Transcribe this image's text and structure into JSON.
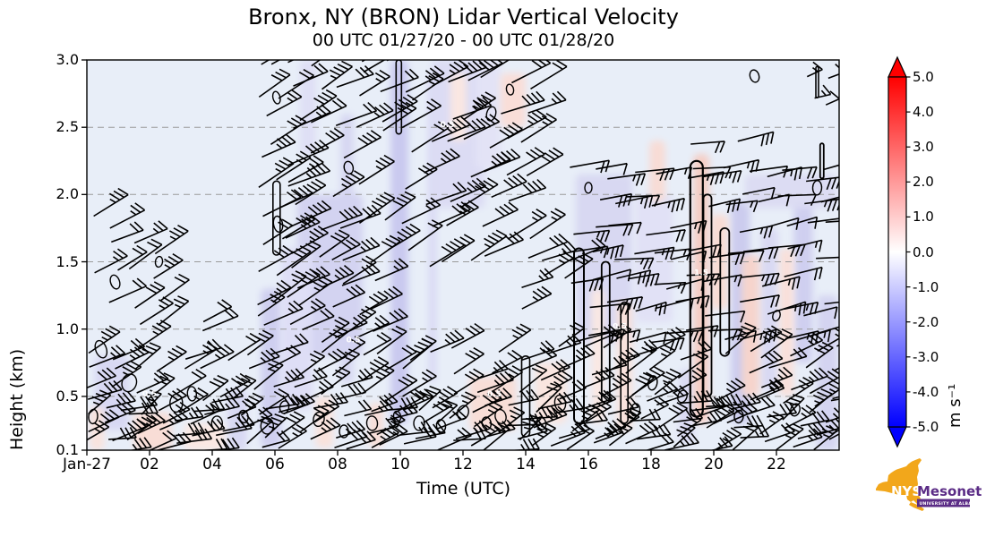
{
  "title": "Bronx, NY (BRON) Lidar Vertical Velocity",
  "subtitle": "00 UTC 01/27/20 - 00 UTC 01/28/20",
  "chart_data": {
    "type": "heatmap",
    "subtype": "time-height wind barbs with vertical-velocity shading and contours",
    "title": "Bronx, NY (BRON) Lidar Vertical Velocity",
    "subtitle": "00 UTC 01/27/20 - 00 UTC 01/28/20",
    "xlabel": "Time (UTC)",
    "ylabel": "Height (km)",
    "x_range_hours": [
      0,
      24
    ],
    "y_range_km": [
      0.1,
      3.0
    ],
    "grid": "horizontal dashed at 0.5 km intervals",
    "grid_lines_km": [
      0.5,
      1.0,
      1.5,
      2.0,
      2.5
    ],
    "plot_bg": "#e8eef8",
    "grid_color": "#9a9a9a",
    "barb_color": "#000000",
    "x_ticks": [
      {
        "h": 0,
        "label": "Jan-27"
      },
      {
        "h": 2,
        "label": "02"
      },
      {
        "h": 4,
        "label": "04"
      },
      {
        "h": 6,
        "label": "06"
      },
      {
        "h": 8,
        "label": "08"
      },
      {
        "h": 10,
        "label": "10"
      },
      {
        "h": 12,
        "label": "12"
      },
      {
        "h": 14,
        "label": "14"
      },
      {
        "h": 16,
        "label": "16"
      },
      {
        "h": 18,
        "label": "18"
      },
      {
        "h": 20,
        "label": "20"
      },
      {
        "h": 22,
        "label": "22"
      }
    ],
    "y_ticks": [
      {
        "v": 3.0,
        "label": "3.0"
      },
      {
        "v": 2.5,
        "label": "2.5"
      },
      {
        "v": 2.0,
        "label": "2.0"
      },
      {
        "v": 1.5,
        "label": "1.5"
      },
      {
        "v": 1.0,
        "label": "1.0"
      },
      {
        "v": 0.5,
        "label": "0.5"
      },
      {
        "v": 0.1,
        "label": "0.1"
      }
    ],
    "colorbar": {
      "label": "m s⁻¹",
      "min": -5.0,
      "max": 5.0,
      "extend": "both",
      "cmap": "blue-white-red",
      "cmap_stops": [
        "#0000ff",
        "#ffffff",
        "#ff0000"
      ],
      "ticks": [
        {
          "v": 5.0,
          "label": "5.0"
        },
        {
          "v": 4.0,
          "label": "4.0"
        },
        {
          "v": 3.0,
          "label": "3.0"
        },
        {
          "v": 2.0,
          "label": "2.0"
        },
        {
          "v": 1.0,
          "label": "1.0"
        },
        {
          "v": 0.0,
          "label": "0.0"
        },
        {
          "v": -1.0,
          "label": "-1.0"
        },
        {
          "v": -2.0,
          "label": "-2.0"
        },
        {
          "v": -3.0,
          "label": "-3.0"
        },
        {
          "v": -4.0,
          "label": "-4.0"
        },
        {
          "v": -5.0,
          "label": "-5.0"
        }
      ]
    },
    "shading_patches": [
      [
        9.7,
        10.25,
        0.3,
        3.0,
        "#c9c9ef"
      ],
      [
        10.9,
        11.15,
        0.6,
        2.9,
        "#d9d9f4"
      ],
      [
        8.1,
        8.5,
        0.6,
        2.6,
        "#d6d6f2"
      ],
      [
        6.7,
        8.8,
        0.8,
        2.0,
        "#d3d3f1"
      ],
      [
        5.55,
        6.2,
        0.12,
        1.3,
        "#cfcff0"
      ],
      [
        6.2,
        7.2,
        0.4,
        1.6,
        "#dedef6"
      ],
      [
        11.0,
        12.7,
        1.9,
        3.0,
        "#dcdcf4"
      ],
      [
        6.8,
        7.3,
        2.3,
        3.0,
        "#dfdff5"
      ],
      [
        0.25,
        1.35,
        0.25,
        0.8,
        "#d8d8f3"
      ],
      [
        4.5,
        5.1,
        0.1,
        0.55,
        "#d8d8f3"
      ],
      [
        15.6,
        17.4,
        0.9,
        2.15,
        "#d8d8f2"
      ],
      [
        17.5,
        18.7,
        1.05,
        2.0,
        "#e1e1f6"
      ],
      [
        20.55,
        21.15,
        0.3,
        1.95,
        "#ccccee"
      ],
      [
        21.5,
        22.05,
        0.55,
        1.75,
        "#d9d9f3"
      ],
      [
        22.55,
        23.15,
        0.75,
        2.1,
        "#cfcff0"
      ],
      [
        23.3,
        23.95,
        0.1,
        1.25,
        "#d4d4f1"
      ],
      [
        21.0,
        23.9,
        1.9,
        2.15,
        "#dcdcf3"
      ],
      [
        12.4,
        13.2,
        2.2,
        3.0,
        "#e3e3f6"
      ],
      [
        18.9,
        19.35,
        0.15,
        0.7,
        "#dadaf3"
      ],
      [
        19.35,
        19.85,
        0.3,
        2.3,
        "#f5cdc4"
      ],
      [
        19.9,
        20.45,
        1.15,
        1.85,
        "#f8dcd4"
      ],
      [
        1.5,
        2.7,
        0.1,
        0.38,
        "#f8ddd6"
      ],
      [
        3.1,
        4.4,
        0.1,
        0.3,
        "#fae8e3"
      ],
      [
        12.2,
        13.7,
        0.25,
        0.65,
        "#f8ded7"
      ],
      [
        14.3,
        15.3,
        0.3,
        0.75,
        "#fae5df"
      ],
      [
        20.9,
        21.45,
        0.5,
        1.55,
        "#f6d4cc"
      ],
      [
        22.1,
        22.55,
        0.5,
        1.6,
        "#f9e0da"
      ],
      [
        16.1,
        16.5,
        0.3,
        1.3,
        "#fae8e3"
      ],
      [
        7.3,
        7.85,
        0.12,
        0.5,
        "#f9e2dc"
      ],
      [
        17.95,
        18.45,
        1.95,
        2.4,
        "#f8dcd5"
      ],
      [
        13.2,
        14.0,
        2.5,
        2.9,
        "#f9ded8"
      ],
      [
        9.0,
        9.45,
        0.12,
        0.45,
        "#f8ded7"
      ],
      [
        0.1,
        0.55,
        0.1,
        0.42,
        "#f9e3dd"
      ],
      [
        16.9,
        17.4,
        0.25,
        1.2,
        "#f9e2dc"
      ],
      [
        11.6,
        12.1,
        2.4,
        2.9,
        "#fae7e2"
      ]
    ],
    "contour_tubes": [
      [
        19.45,
        0.35,
        2.25,
        14,
        2.2
      ],
      [
        19.8,
        0.5,
        2.0,
        9,
        1.8
      ],
      [
        15.7,
        0.3,
        1.6,
        11,
        2.0
      ],
      [
        16.55,
        0.45,
        1.5,
        9,
        1.8
      ],
      [
        17.15,
        0.3,
        1.2,
        8,
        1.6
      ],
      [
        20.35,
        0.8,
        1.75,
        10,
        1.8
      ],
      [
        14.0,
        0.2,
        0.8,
        9,
        1.6
      ],
      [
        6.05,
        1.55,
        2.1,
        8,
        1.6
      ],
      [
        9.95,
        2.45,
        3.0,
        6,
        1.6
      ],
      [
        23.45,
        2.12,
        2.38,
        4,
        1.8
      ],
      [
        23.3,
        2.72,
        2.95,
        3,
        1.6
      ]
    ],
    "contour_loops": [
      [
        0.45,
        0.85,
        6,
        10
      ],
      [
        0.9,
        1.35,
        5,
        8
      ],
      [
        1.35,
        0.6,
        8,
        10
      ],
      [
        2.3,
        1.5,
        4,
        6
      ],
      [
        2.85,
        0.45,
        7,
        10
      ],
      [
        3.35,
        0.52,
        5,
        8
      ],
      [
        4.15,
        0.3,
        6,
        8
      ],
      [
        5.0,
        0.35,
        5,
        7
      ],
      [
        5.75,
        0.28,
        7,
        9
      ],
      [
        6.3,
        0.42,
        5,
        7
      ],
      [
        6.1,
        1.78,
        5,
        9
      ],
      [
        6.05,
        2.72,
        4,
        7
      ],
      [
        7.4,
        0.33,
        6,
        8
      ],
      [
        8.2,
        0.24,
        5,
        7
      ],
      [
        8.35,
        2.2,
        5,
        7
      ],
      [
        9.1,
        0.3,
        6,
        8
      ],
      [
        9.9,
        0.35,
        4,
        6
      ],
      [
        10.6,
        0.3,
        6,
        8
      ],
      [
        11.3,
        0.28,
        5,
        7
      ],
      [
        12.0,
        0.38,
        6,
        8
      ],
      [
        12.75,
        0.3,
        5,
        7
      ],
      [
        12.9,
        2.6,
        5,
        8
      ],
      [
        13.5,
        2.78,
        4,
        6
      ],
      [
        13.2,
        0.35,
        6,
        8
      ],
      [
        14.5,
        0.3,
        5,
        7
      ],
      [
        15.1,
        0.45,
        6,
        9
      ],
      [
        16.0,
        2.05,
        4,
        6
      ],
      [
        18.05,
        0.6,
        5,
        8
      ],
      [
        21.3,
        2.88,
        5,
        7
      ],
      [
        22.0,
        1.1,
        4,
        6
      ],
      [
        23.3,
        2.05,
        5,
        8
      ],
      [
        0.2,
        0.35,
        5,
        8
      ],
      [
        17.5,
        0.4,
        5,
        7
      ],
      [
        19.0,
        0.5,
        5,
        7
      ],
      [
        20.8,
        0.35,
        5,
        7
      ],
      [
        22.6,
        0.4,
        5,
        7
      ]
    ],
    "contour_labels": [
      [
        2.0,
        0.5,
        "0.5"
      ],
      [
        8.5,
        0.9,
        "0.5"
      ],
      [
        13.0,
        0.5,
        "0.5"
      ],
      [
        17.0,
        1.0,
        "0.5"
      ],
      [
        19.6,
        1.4,
        "1.5"
      ],
      [
        11.5,
        2.5,
        "0.5"
      ]
    ],
    "barb_regions": [
      {
        "t0": 0.1,
        "t1": 23.9,
        "z0": 0.13,
        "z1": 0.5,
        "dt": 0.55,
        "dz": 0.1,
        "ang": -24,
        "jit": 22,
        "side": 1,
        "keep": 0.93,
        "len": 36,
        "f0": 2,
        "f1": 3
      },
      {
        "t0": 0.1,
        "t1": 23.9,
        "z0": 0.52,
        "z1": 0.95,
        "dt": 0.72,
        "dz": 0.15,
        "ang": -28,
        "jit": 13,
        "side": 1,
        "keep": 0.86,
        "len": 40,
        "f0": 2,
        "f1": 3
      },
      {
        "t0": 0.1,
        "t1": 2.6,
        "z0": 1.0,
        "z1": 1.95,
        "dt": 0.7,
        "dz": 0.2,
        "ang": -30,
        "jit": 10,
        "side": 1,
        "keep": 0.7,
        "len": 42,
        "f0": 2,
        "f1": 3
      },
      {
        "t0": 2.6,
        "t1": 5.5,
        "z0": 0.95,
        "z1": 1.1,
        "dt": 0.95,
        "dz": 0.15,
        "ang": -28,
        "jit": 10,
        "side": 1,
        "keep": 0.45,
        "len": 40,
        "f0": 2,
        "f1": 2
      },
      {
        "t0": 5.6,
        "t1": 6.5,
        "z0": 1.0,
        "z1": 3.0,
        "dt": 0.45,
        "dz": 0.22,
        "ang": -30,
        "jit": 8,
        "side": 1,
        "keep": 0.88,
        "len": 44,
        "f0": 2,
        "f1": 3
      },
      {
        "t0": 6.6,
        "t1": 10.5,
        "z0": 1.55,
        "z1": 3.0,
        "dt": 0.72,
        "dz": 0.24,
        "ang": -28,
        "jit": 9,
        "side": 1,
        "keep": 0.72,
        "len": 46,
        "f0": 2,
        "f1": 4
      },
      {
        "t0": 6.7,
        "t1": 8.7,
        "z0": 0.95,
        "z1": 1.5,
        "dt": 0.7,
        "dz": 0.2,
        "ang": -27,
        "jit": 9,
        "side": 1,
        "keep": 0.8,
        "len": 42,
        "f0": 2,
        "f1": 3
      },
      {
        "t0": 8.0,
        "t1": 9.6,
        "z0": 0.95,
        "z1": 1.5,
        "dt": 0.6,
        "dz": 0.18,
        "ang": -26,
        "jit": 10,
        "side": 1,
        "keep": 0.8,
        "len": 40,
        "f0": 2,
        "f1": 3
      },
      {
        "t0": 10.9,
        "t1": 14.2,
        "z0": 1.5,
        "z1": 3.0,
        "dt": 0.62,
        "dz": 0.22,
        "ang": -26,
        "jit": 9,
        "side": 1,
        "keep": 0.86,
        "len": 46,
        "f0": 2,
        "f1": 4
      },
      {
        "t0": 8.8,
        "t1": 10.4,
        "z0": 2.5,
        "z1": 2.95,
        "dt": 0.7,
        "dz": 0.22,
        "ang": -30,
        "jit": 8,
        "side": 1,
        "keep": 0.6,
        "len": 42,
        "f0": 2,
        "f1": 3
      },
      {
        "t0": 13.9,
        "t1": 15.5,
        "z0": 0.95,
        "z1": 1.55,
        "dt": 0.7,
        "dz": 0.2,
        "ang": -25,
        "jit": 10,
        "side": 1,
        "keep": 0.75,
        "len": 40,
        "f0": 2,
        "f1": 3
      },
      {
        "t0": 15.6,
        "t1": 23.9,
        "z0": 0.95,
        "z1": 2.15,
        "dt": 0.6,
        "dz": 0.2,
        "ang": -10,
        "jit": 8,
        "side": -1,
        "keep": 0.88,
        "len": 40,
        "f0": 1,
        "f1": 3
      },
      {
        "t0": 19.4,
        "t1": 20.9,
        "z0": 2.15,
        "z1": 2.45,
        "dt": 0.7,
        "dz": 0.25,
        "ang": -12,
        "jit": 8,
        "side": -1,
        "keep": 0.6,
        "len": 38,
        "f0": 2,
        "f1": 3
      },
      {
        "t0": 23.1,
        "t1": 23.7,
        "z0": 2.7,
        "z1": 2.95,
        "dt": 0.5,
        "dz": 0.2,
        "ang": -20,
        "jit": 8,
        "side": 1,
        "keep": 0.8,
        "len": 20,
        "f0": 1,
        "f1": 1
      }
    ],
    "logo": {
      "org": "NYS",
      "name": "Mesonet",
      "sub": "UNIVERSITY AT ALBANY",
      "orange": "#f2a71b",
      "purple": "#5b2c86"
    }
  }
}
